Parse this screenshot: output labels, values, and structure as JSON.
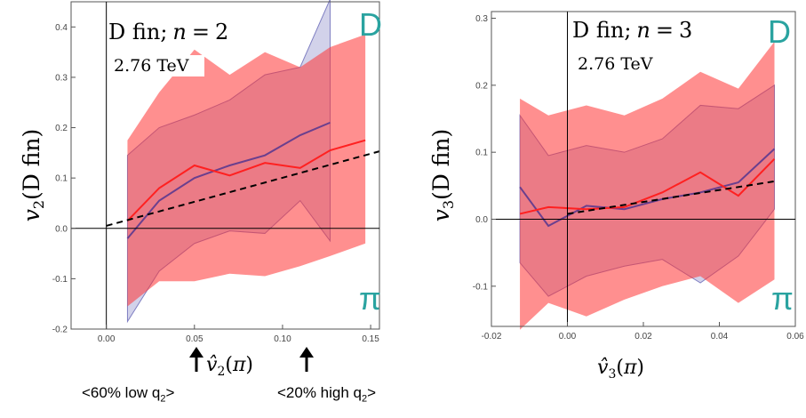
{
  "chart_data": [
    {
      "type": "area",
      "id": "n2",
      "corner_letter_top": "D",
      "corner_letter_bottom": "π",
      "title_text": "D fin; n = 2",
      "subtitle": "2.76 TeV",
      "ylabel": "v2(D fin)",
      "xlabel": "v̂2(π)",
      "xlim": [
        -0.02,
        0.155
      ],
      "ylim": [
        -0.2,
        0.45
      ],
      "xticks": [
        "0.00",
        "0.05",
        "0.10",
        "0.15"
      ],
      "xtick_values": [
        0.0,
        0.05,
        0.1,
        0.15
      ],
      "yticks": [
        "-0.2",
        "-0.1",
        "0.0",
        "0.1",
        "0.2",
        "0.3",
        "0.4"
      ],
      "ytick_values": [
        -0.2,
        -0.1,
        0.0,
        0.1,
        0.2,
        0.3,
        0.4
      ],
      "series": [
        {
          "color": "#7f7fc2",
          "x": [
            0.012,
            0.03,
            0.05,
            0.07,
            0.09,
            0.11,
            0.127
          ],
          "mean": [
            -0.02,
            0.055,
            0.1,
            0.125,
            0.145,
            0.185,
            0.21
          ],
          "upper": [
            0.145,
            0.2,
            0.225,
            0.255,
            0.305,
            0.32,
            0.455
          ],
          "lower": [
            -0.185,
            -0.085,
            -0.03,
            -0.005,
            -0.01,
            0.055,
            -0.025
          ]
        },
        {
          "color": "#ff3333",
          "x": [
            0.012,
            0.03,
            0.05,
            0.07,
            0.09,
            0.11,
            0.127,
            0.147
          ],
          "mean": [
            0.015,
            0.08,
            0.125,
            0.105,
            0.13,
            0.12,
            0.155,
            0.175
          ],
          "upper": [
            0.175,
            0.27,
            0.355,
            0.305,
            0.35,
            0.32,
            0.36,
            0.385
          ],
          "lower": [
            -0.155,
            -0.105,
            -0.105,
            -0.09,
            -0.095,
            -0.075,
            -0.055,
            -0.03
          ]
        }
      ],
      "fit_line": {
        "x": [
          0.0,
          0.155
        ],
        "y": [
          0.005,
          0.153
        ]
      }
    },
    {
      "type": "area",
      "id": "n3",
      "corner_letter_top": "D",
      "corner_letter_bottom": "π",
      "title_text": "D fin; n = 3",
      "subtitle": "2.76 TeV",
      "ylabel": "v3(D fin)",
      "xlabel": "v̂3(π)",
      "xlim": [
        -0.02,
        0.06
      ],
      "ylim": [
        -0.16,
        0.31
      ],
      "xticks": [
        "-0.02",
        "0.00",
        "0.02",
        "0.04",
        "0.06"
      ],
      "xtick_values": [
        -0.02,
        0.0,
        0.02,
        0.04,
        0.06
      ],
      "yticks": [
        "-0.1",
        "0.0",
        "0.1",
        "0.2",
        "0.3"
      ],
      "ytick_values": [
        -0.1,
        0.0,
        0.1,
        0.2,
        0.3
      ],
      "series": [
        {
          "color": "#7f7fc2",
          "x": [
            -0.0125,
            -0.005,
            0.005,
            0.015,
            0.025,
            0.035,
            0.045,
            0.0545
          ],
          "mean": [
            0.048,
            -0.01,
            0.02,
            0.015,
            0.03,
            0.04,
            0.055,
            0.105
          ],
          "upper": [
            0.155,
            0.095,
            0.11,
            0.1,
            0.12,
            0.17,
            0.165,
            0.2
          ],
          "lower": [
            -0.065,
            -0.115,
            -0.085,
            -0.07,
            -0.06,
            -0.095,
            -0.055,
            0.015
          ]
        },
        {
          "color": "#ff3333",
          "x": [
            -0.0125,
            -0.005,
            0.005,
            0.015,
            0.025,
            0.035,
            0.045,
            0.0545
          ],
          "mean": [
            0.008,
            0.018,
            0.015,
            0.018,
            0.04,
            0.07,
            0.035,
            0.09
          ],
          "upper": [
            0.18,
            0.155,
            0.17,
            0.155,
            0.18,
            0.22,
            0.195,
            0.265
          ],
          "lower": [
            -0.165,
            -0.125,
            -0.145,
            -0.12,
            -0.1,
            -0.085,
            -0.125,
            -0.09
          ]
        }
      ],
      "fit_line": {
        "x": [
          0.0,
          0.055
        ],
        "y": [
          0.008,
          0.057
        ]
      }
    }
  ],
  "annotations": {
    "low_q2": "<60% low q2>",
    "high_q2": "<20% high q2>"
  }
}
